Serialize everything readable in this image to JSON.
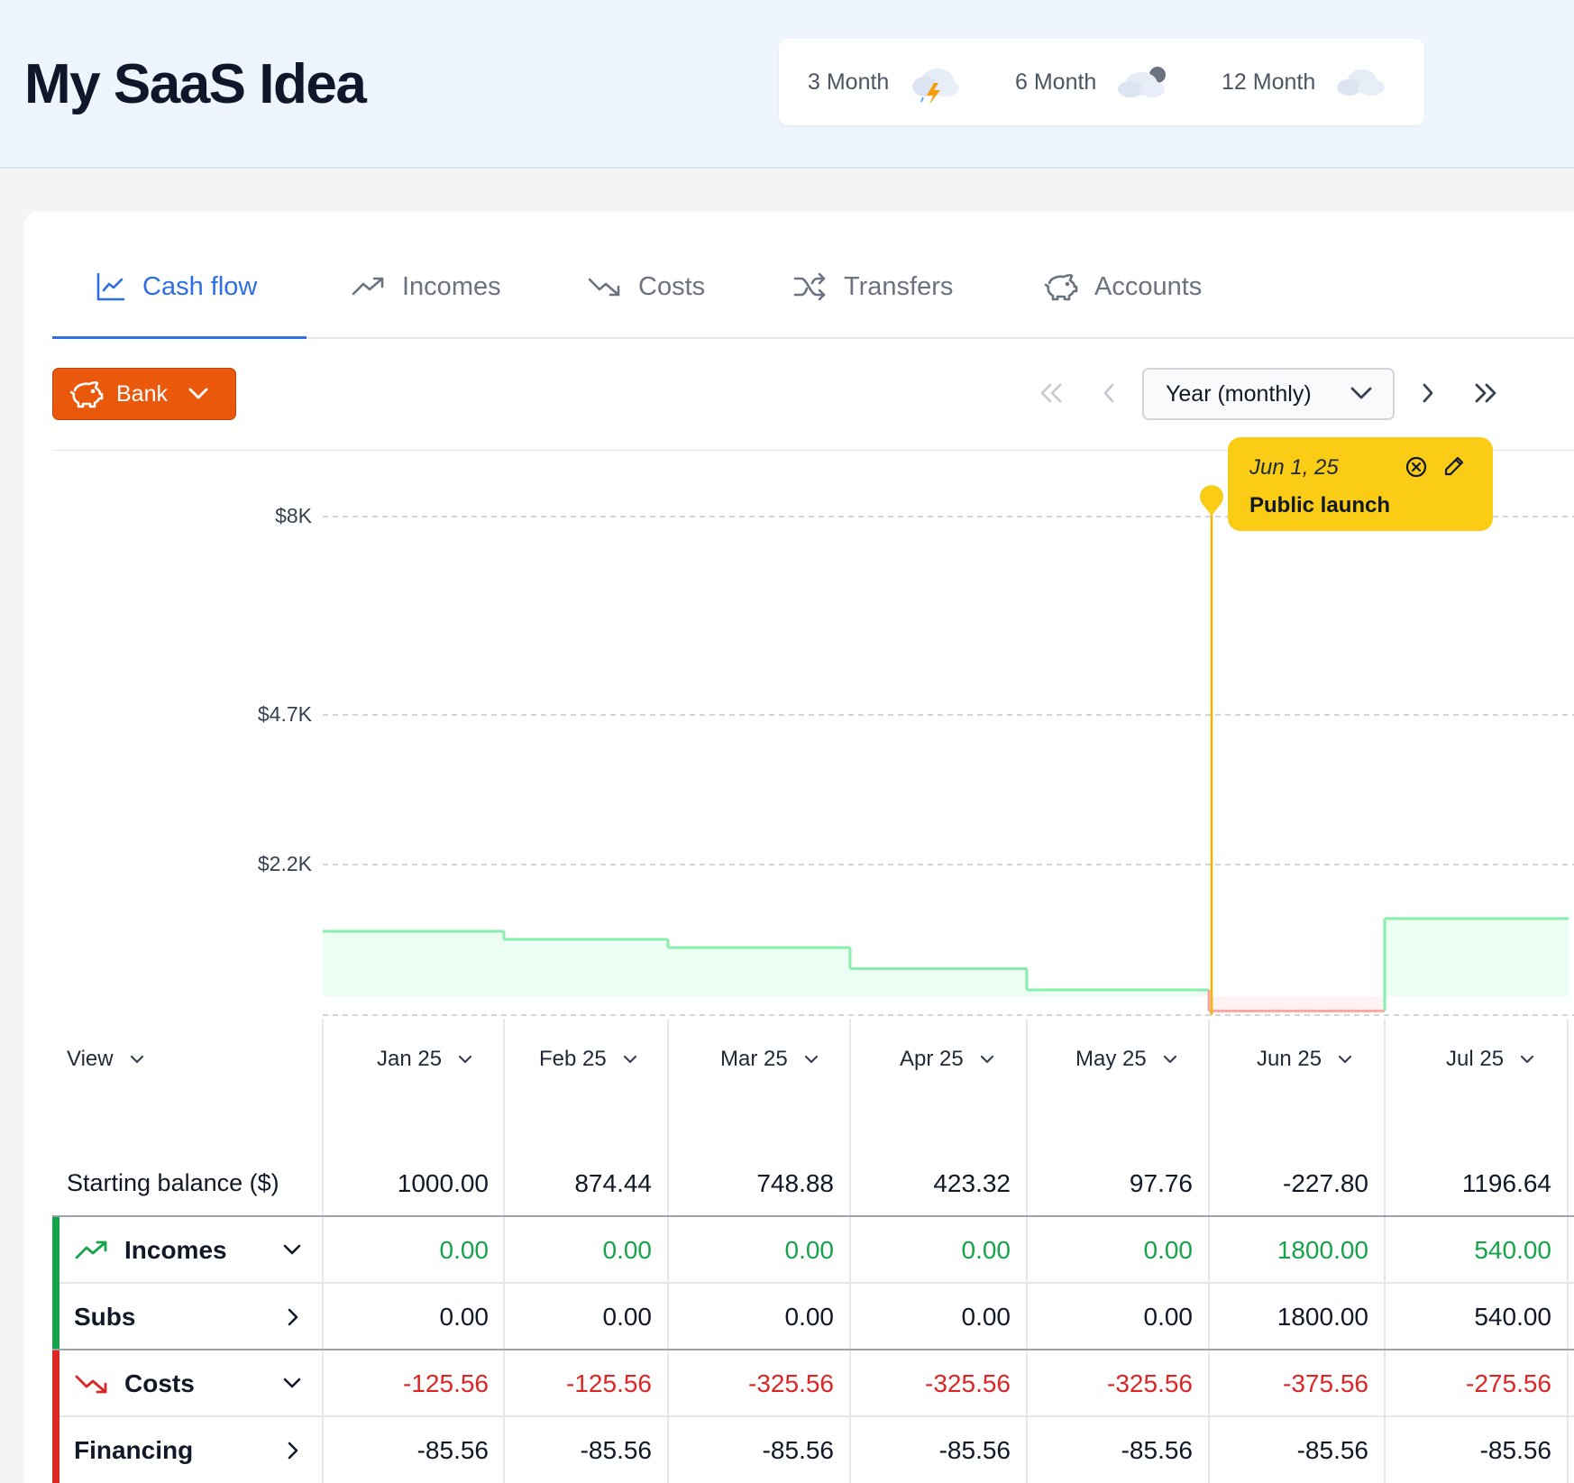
{
  "app": {
    "title": "My SaaS Idea"
  },
  "forecast": [
    {
      "label": "3 Month",
      "icon": "storm-cloud-icon"
    },
    {
      "label": "6 Month",
      "icon": "cloud-moon-icon"
    },
    {
      "label": "12 Month",
      "icon": "cloud-icon"
    }
  ],
  "tabs": [
    {
      "label": "Cash flow",
      "icon": "line-chart-icon",
      "active": true
    },
    {
      "label": "Incomes",
      "icon": "trend-up-icon"
    },
    {
      "label": "Costs",
      "icon": "trend-down-icon"
    },
    {
      "label": "Transfers",
      "icon": "shuffle-icon"
    },
    {
      "label": "Accounts",
      "icon": "piggy-bank-icon"
    }
  ],
  "account_select": {
    "label": "Bank",
    "icon": "piggy-bank-icon"
  },
  "period_select": {
    "value": "Year (monthly)"
  },
  "marker": {
    "date": "Jun 1, 25",
    "title": "Public launch",
    "color": "#facc15"
  },
  "chart_data": {
    "type": "area",
    "style": "step",
    "y_ticks": [
      "$8K",
      "$4.7K",
      "$2.2K"
    ],
    "x": [
      "Jan 25",
      "Feb 25",
      "Mar 25",
      "Apr 25",
      "May 25",
      "Jun 25",
      "Jul 25"
    ],
    "values": [
      1000.0,
      874.44,
      748.88,
      423.32,
      97.76,
      -227.8,
      1196.64
    ],
    "positive_color": "#86efac",
    "negative_color": "#fca5a5",
    "grid": "dashed"
  },
  "table": {
    "view_label": "View",
    "columns": [
      "Jan 25",
      "Feb 25",
      "Mar 25",
      "Apr 25",
      "May 25",
      "Jun 25",
      "Jul 25"
    ],
    "rows": [
      {
        "label": "Starting balance ($)",
        "values": [
          "1000.00",
          "874.44",
          "748.88",
          "423.32",
          "97.76",
          "-227.80",
          "1196.64"
        ]
      },
      {
        "label": "Incomes",
        "values": [
          "0.00",
          "0.00",
          "0.00",
          "0.00",
          "0.00",
          "1800.00",
          "540.00"
        ]
      },
      {
        "label": "Subs",
        "values": [
          "0.00",
          "0.00",
          "0.00",
          "0.00",
          "0.00",
          "1800.00",
          "540.00"
        ]
      },
      {
        "label": "Costs",
        "values": [
          "-125.56",
          "-125.56",
          "-325.56",
          "-325.56",
          "-325.56",
          "-375.56",
          "-275.56"
        ]
      },
      {
        "label": "Financing",
        "values": [
          "-85.56",
          "-85.56",
          "-85.56",
          "-85.56",
          "-85.56",
          "-85.56",
          "-85.56"
        ]
      }
    ]
  }
}
